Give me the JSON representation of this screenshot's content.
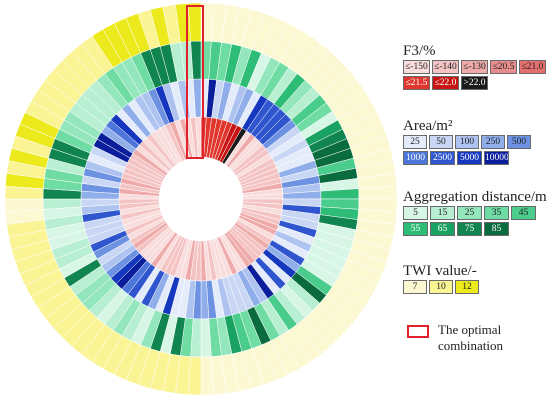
{
  "chart_data": {
    "type": "sunburst",
    "rings": [
      {
        "name": "F3/%",
        "legend": [
          "≤-150",
          "≤-140",
          "≤-130",
          "≤20.5",
          "≤21.0",
          "≤21.5",
          "≤22.0",
          ">22.0"
        ],
        "colors": [
          "#f9dcdc",
          "#f4c4c4",
          "#efaaaa",
          "#e88d8d",
          "#e26e6e",
          "#e0362e",
          "#c81414",
          "#1b1b1b"
        ]
      },
      {
        "name": "Area/m²",
        "legend": [
          "25",
          "50",
          "100",
          "250",
          "500",
          "1000",
          "2500",
          "5000",
          "10000"
        ],
        "colors": [
          "#e4ebfa",
          "#c9d7f4",
          "#aec3ef",
          "#90aee9",
          "#6d92e2",
          "#4d76da",
          "#2f56cf",
          "#1638bf",
          "#0a1e9c"
        ]
      },
      {
        "name": "Aggregation distance/m",
        "legend": [
          "5",
          "15",
          "25",
          "35",
          "45",
          "55",
          "65",
          "75",
          "85"
        ],
        "colors": [
          "#d8f6e6",
          "#b8efd2",
          "#94e6bc",
          "#6fdca4",
          "#4acd8c",
          "#2dbd76",
          "#1aa262",
          "#118550",
          "#0a6b3e"
        ]
      },
      {
        "name": "TWI value/-",
        "legend": [
          "7",
          "10",
          "12"
        ],
        "colors": [
          "#fcf8d2",
          "#faf494",
          "#ecea1c"
        ]
      }
    ],
    "optimal_label": "The optimal combination"
  }
}
